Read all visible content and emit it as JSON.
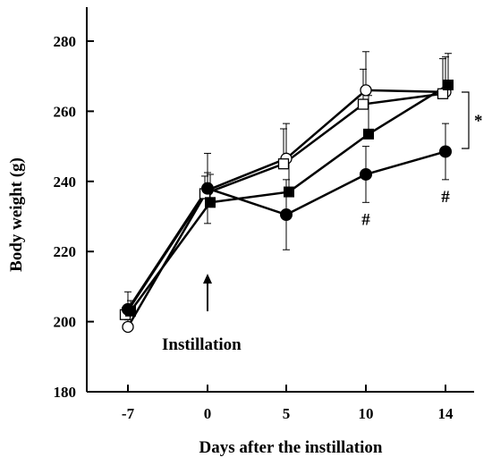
{
  "chart_data": {
    "type": "line",
    "title": "",
    "xlabel": "Days after the instillation",
    "ylabel": "Body weight (g)",
    "categories": [
      "-7",
      "0",
      "5",
      "10",
      "14"
    ],
    "ylim": [
      180,
      280
    ],
    "yticks": [
      180,
      200,
      220,
      240,
      260,
      280
    ],
    "grid": false,
    "legend": "none",
    "series": [
      {
        "marker": "circle-open",
        "values": [
          198.5,
          237.5,
          246.5,
          266.0,
          265.5
        ],
        "errors": [
          2,
          5,
          10,
          11,
          10
        ]
      },
      {
        "marker": "square-open",
        "values": [
          202.0,
          236.5,
          245.0,
          262.0,
          265.0
        ],
        "errors": [
          2,
          5,
          10,
          10,
          10
        ]
      },
      {
        "marker": "square-filled",
        "values": [
          203.0,
          234.0,
          237.0,
          253.5,
          267.5
        ],
        "errors": [
          3,
          8,
          10,
          11,
          9
        ]
      },
      {
        "marker": "circle-filled",
        "values": [
          203.5,
          238.0,
          230.5,
          242.0,
          248.5
        ],
        "errors": [
          5,
          10,
          10,
          8,
          8
        ]
      }
    ],
    "annotations": {
      "instillation_label": "Instillation",
      "hash_symbol": "#",
      "hash_categories": [
        "10",
        "14"
      ],
      "significance_symbol": "*"
    }
  }
}
